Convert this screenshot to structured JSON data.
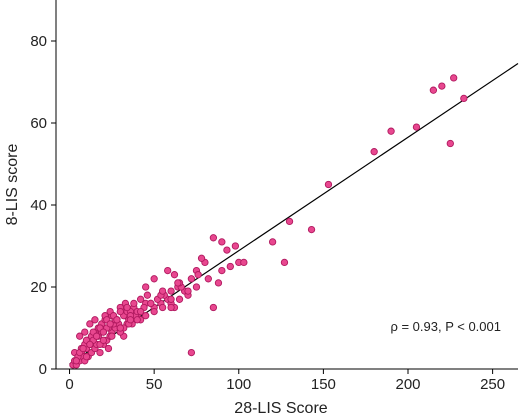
{
  "chart_data": {
    "type": "scatter",
    "title": "",
    "xlabel": "28-LIS Score",
    "ylabel": "8-LIS score",
    "xlim": [
      -8,
      265
    ],
    "ylim": [
      0,
      90
    ],
    "xticks": [
      0,
      50,
      100,
      150,
      200,
      250
    ],
    "yticks": [
      0,
      20,
      40,
      60,
      80
    ],
    "grid": false,
    "legend": "none",
    "annotation": "ρ = 0.93, P < 0.001",
    "colors": {
      "marker_fill": "#e8478f",
      "marker_stroke": "#b0195f",
      "line": "#000000"
    },
    "fit_line": {
      "x": [
        0,
        265
      ],
      "y": [
        1.2,
        74.5
      ]
    },
    "series": [
      {
        "x": [
          2,
          3,
          4,
          5,
          6,
          7,
          8,
          9,
          10,
          11,
          12,
          13,
          14,
          15,
          16,
          17,
          18,
          19,
          20,
          21,
          22,
          23,
          24,
          25,
          26,
          27,
          28,
          30,
          32,
          34,
          3,
          5,
          7,
          9,
          11,
          13,
          15,
          17,
          19,
          21,
          23,
          25,
          27,
          29,
          31,
          33,
          35,
          37,
          4,
          6,
          8,
          10,
          12,
          14,
          16,
          18,
          20,
          22,
          24,
          26,
          28,
          30,
          32,
          34,
          36,
          38,
          40,
          6,
          9,
          12,
          15,
          18,
          21,
          24,
          27,
          30,
          33,
          36,
          39,
          42,
          45,
          10,
          14,
          18,
          22,
          26,
          30,
          34,
          38,
          42,
          46,
          50,
          54,
          58,
          62,
          12,
          16,
          20,
          24,
          28,
          32,
          36,
          40,
          44,
          48,
          52,
          56,
          60,
          64,
          68,
          20,
          25,
          30,
          35,
          40,
          45,
          50,
          55,
          60,
          65,
          70,
          75,
          30,
          36,
          42,
          48,
          54,
          60,
          66,
          72,
          45,
          50,
          55,
          58,
          62,
          65,
          70,
          75,
          80,
          88,
          95,
          85,
          90,
          93,
          98,
          100,
          78,
          82,
          76,
          64,
          72,
          103,
          120,
          127,
          130,
          143,
          153,
          180,
          190,
          205,
          215,
          220,
          225,
          227,
          233,
          85,
          90,
          60
        ],
        "y": [
          1,
          2,
          1,
          3,
          2,
          4,
          3,
          2,
          5,
          3,
          6,
          4,
          7,
          5,
          6,
          8,
          4,
          9,
          6,
          10,
          7,
          5,
          8,
          9,
          11,
          10,
          12,
          9,
          8,
          11,
          4,
          3,
          5,
          6,
          7,
          8,
          9,
          10,
          11,
          12,
          10,
          13,
          12,
          11,
          14,
          13,
          12,
          11,
          2,
          4,
          5,
          3,
          6,
          7,
          8,
          6,
          9,
          10,
          8,
          11,
          12,
          10,
          13,
          14,
          12,
          15,
          13,
          8,
          9,
          11,
          12,
          10,
          13,
          14,
          12,
          15,
          16,
          14,
          13,
          12,
          16,
          7,
          9,
          10,
          12,
          13,
          14,
          15,
          16,
          17,
          18,
          15,
          16,
          17,
          15,
          6,
          8,
          9,
          11,
          12,
          10,
          13,
          14,
          15,
          16,
          17,
          18,
          19,
          20,
          19,
          7,
          8,
          9,
          11,
          12,
          13,
          14,
          15,
          16,
          17,
          18,
          20,
          10,
          12,
          14,
          16,
          18,
          15,
          20,
          22,
          20,
          22,
          19,
          24,
          23,
          21,
          19,
          24,
          26,
          21,
          25,
          32,
          31,
          29,
          30,
          26,
          27,
          22,
          23,
          21,
          4,
          26,
          31,
          26,
          36,
          34,
          45,
          53,
          58,
          59,
          68,
          69,
          55,
          71,
          66,
          15,
          24,
          17
        ]
      }
    ]
  }
}
